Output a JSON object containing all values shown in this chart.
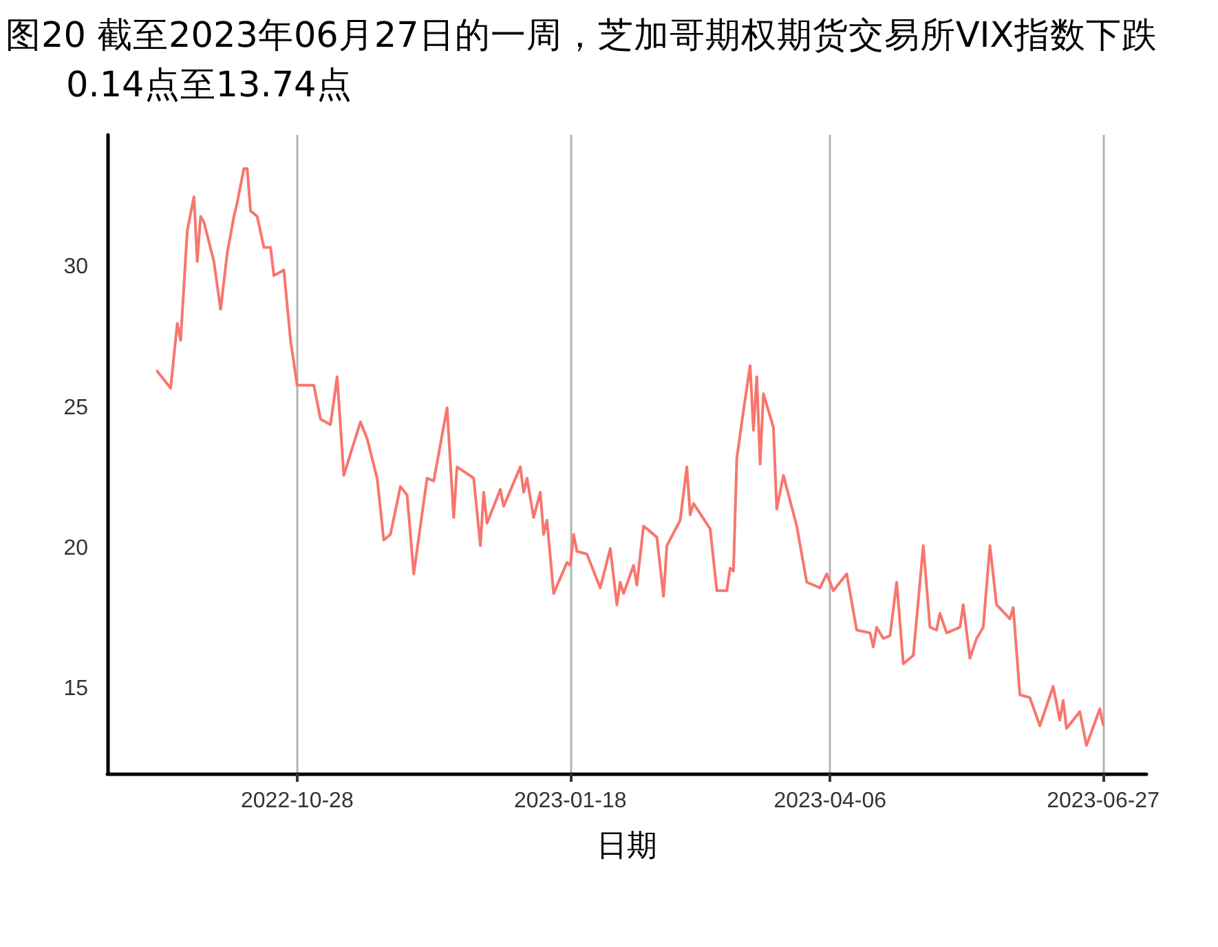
{
  "chart_data": {
    "type": "line",
    "title": "图20  截至2023年06月27日的一周，芝加哥期权期货交易所VIX指数下跌0.14点至13.74点",
    "xlabel": "日期",
    "x": [
      "2022-09-16",
      "2022-09-20",
      "2022-09-22",
      "2022-09-23",
      "2022-09-25",
      "2022-09-27",
      "2022-09-28",
      "2022-09-29",
      "2022-09-30",
      "2022-10-03",
      "2022-10-05",
      "2022-10-07",
      "2022-10-09",
      "2022-10-10",
      "2022-10-12",
      "2022-10-13",
      "2022-10-14",
      "2022-10-16",
      "2022-10-18",
      "2022-10-20",
      "2022-10-21",
      "2022-10-24",
      "2022-10-26",
      "2022-10-28",
      "2022-11-02",
      "2022-11-04",
      "2022-11-07",
      "2022-11-09",
      "2022-11-11",
      "2022-11-16",
      "2022-11-18",
      "2022-11-21",
      "2022-11-23",
      "2022-11-25",
      "2022-11-28",
      "2022-11-30",
      "2022-12-02",
      "2022-12-06",
      "2022-12-08",
      "2022-12-12",
      "2022-12-14",
      "2022-12-15",
      "2022-12-20",
      "2022-12-22",
      "2022-12-23",
      "2022-12-24",
      "2022-12-28",
      "2022-12-29",
      "2023-01-03",
      "2023-01-04",
      "2023-01-05",
      "2023-01-07",
      "2023-01-09",
      "2023-01-10",
      "2023-01-11",
      "2023-01-13",
      "2023-01-17",
      "2023-01-18",
      "2023-01-19",
      "2023-01-20",
      "2023-01-23",
      "2023-01-27",
      "2023-01-30",
      "2023-02-01",
      "2023-02-02",
      "2023-02-03",
      "2023-02-06",
      "2023-02-07",
      "2023-02-09",
      "2023-02-13",
      "2023-02-15",
      "2023-02-16",
      "2023-02-20",
      "2023-02-22",
      "2023-02-23",
      "2023-02-24",
      "2023-03-01",
      "2023-03-03",
      "2023-03-06",
      "2023-03-07",
      "2023-03-08",
      "2023-03-09",
      "2023-03-11",
      "2023-03-13",
      "2023-03-14",
      "2023-03-15",
      "2023-03-16",
      "2023-03-17",
      "2023-03-20",
      "2023-03-21",
      "2023-03-23",
      "2023-03-27",
      "2023-03-30",
      "2023-04-03",
      "2023-04-05",
      "2023-04-07",
      "2023-04-11",
      "2023-04-14",
      "2023-04-18",
      "2023-04-19",
      "2023-04-20",
      "2023-04-22",
      "2023-04-24",
      "2023-04-26",
      "2023-04-28",
      "2023-05-01",
      "2023-05-04",
      "2023-05-06",
      "2023-05-08",
      "2023-05-09",
      "2023-05-11",
      "2023-05-15",
      "2023-05-16",
      "2023-05-18",
      "2023-05-20",
      "2023-05-22",
      "2023-05-24",
      "2023-05-26",
      "2023-05-30",
      "2023-05-31",
      "2023-06-02",
      "2023-06-05",
      "2023-06-08",
      "2023-06-12",
      "2023-06-14",
      "2023-06-15",
      "2023-06-16",
      "2023-06-20",
      "2023-06-22",
      "2023-06-26",
      "2023-06-27"
    ],
    "series": [
      {
        "color": "#f8766d",
        "values": [
          26.3,
          25.7,
          28.0,
          27.4,
          31.3,
          32.5,
          30.2,
          31.8,
          31.6,
          30.2,
          28.5,
          30.5,
          31.8,
          32.3,
          33.5,
          33.5,
          32.0,
          31.8,
          30.7,
          30.7,
          29.7,
          29.9,
          27.4,
          25.8,
          25.8,
          24.6,
          24.4,
          26.1,
          22.6,
          24.5,
          23.9,
          22.5,
          20.3,
          20.5,
          22.2,
          21.9,
          19.1,
          22.5,
          22.4,
          25.0,
          21.1,
          22.9,
          22.5,
          20.1,
          22.0,
          20.9,
          22.1,
          21.5,
          22.9,
          22.0,
          22.5,
          21.1,
          22.0,
          20.5,
          21.0,
          18.4,
          19.5,
          19.4,
          20.5,
          19.9,
          19.8,
          18.6,
          20.0,
          18.0,
          18.8,
          18.4,
          19.4,
          18.7,
          20.8,
          20.4,
          18.3,
          20.1,
          21.0,
          22.9,
          21.2,
          21.6,
          20.7,
          18.5,
          18.5,
          19.3,
          19.2,
          23.2,
          24.9,
          26.5,
          24.2,
          26.1,
          23.0,
          25.5,
          24.3,
          21.4,
          22.6,
          20.8,
          18.8,
          18.6,
          19.1,
          18.5,
          19.1,
          17.1,
          17.0,
          16.5,
          17.2,
          16.8,
          16.9,
          18.8,
          15.9,
          16.2,
          20.1,
          17.2,
          17.1,
          17.7,
          17.0,
          17.2,
          18.0,
          16.1,
          16.8,
          17.2,
          20.1,
          18.0,
          17.5,
          17.9,
          14.8,
          14.7,
          13.7,
          15.1,
          13.9,
          14.6,
          13.6,
          14.2,
          13.0,
          14.3,
          13.74
        ]
      }
    ],
    "xlim": [
      "2022-09-01",
      "2023-07-10"
    ],
    "xticks": [
      "2022-10-28",
      "2023-01-18",
      "2023-04-06",
      "2023-06-27"
    ],
    "ylim": [
      12,
      34.7
    ],
    "yticks": [
      15,
      20,
      25,
      30
    ],
    "grid": "x",
    "marker": "none",
    "line_style": "solid"
  }
}
